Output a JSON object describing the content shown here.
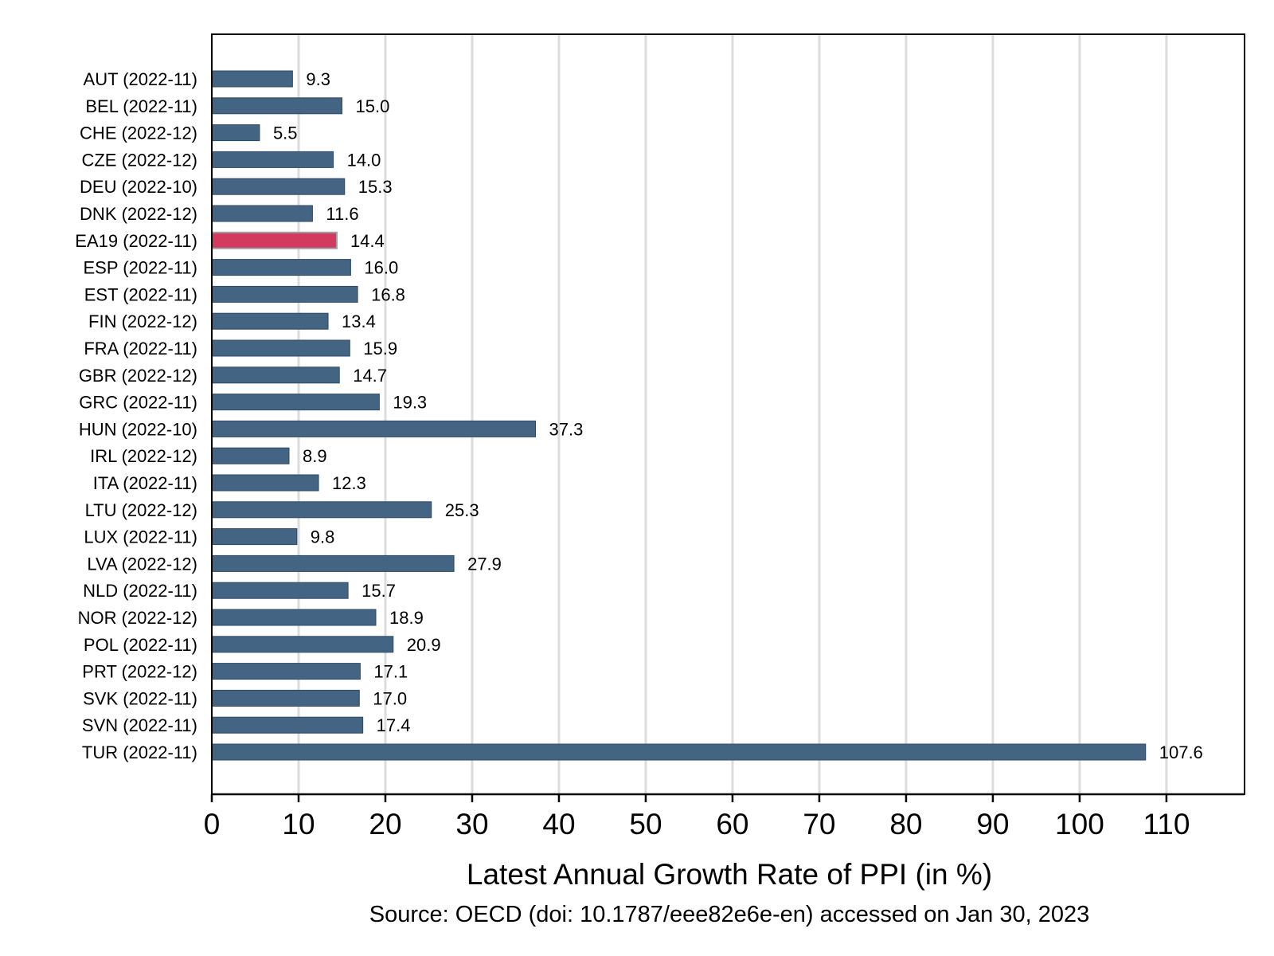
{
  "chart_data": {
    "type": "bar",
    "orientation": "horizontal",
    "categories": [
      "AUT (2022-11)",
      "BEL (2022-11)",
      "CHE (2022-12)",
      "CZE (2022-12)",
      "DEU (2022-10)",
      "DNK (2022-12)",
      "EA19 (2022-11)",
      "ESP (2022-11)",
      "EST (2022-11)",
      "FIN (2022-12)",
      "FRA (2022-11)",
      "GBR (2022-12)",
      "GRC (2022-11)",
      "HUN (2022-10)",
      "IRL (2022-12)",
      "ITA (2022-11)",
      "LTU (2022-12)",
      "LUX (2022-11)",
      "LVA (2022-12)",
      "NLD (2022-11)",
      "NOR (2022-12)",
      "POL (2022-11)",
      "PRT (2022-12)",
      "SVK (2022-11)",
      "SVN (2022-11)",
      "TUR (2022-11)"
    ],
    "values": [
      9.3,
      15.0,
      5.5,
      14.0,
      15.3,
      11.6,
      14.4,
      16.0,
      16.8,
      13.4,
      15.9,
      14.7,
      19.3,
      37.3,
      8.9,
      12.3,
      25.3,
      9.8,
      27.9,
      15.7,
      18.9,
      20.9,
      17.1,
      17.0,
      17.4,
      107.6
    ],
    "value_labels": [
      "9.3",
      "15.0",
      "5.5",
      "14.0",
      "15.3",
      "11.6",
      "14.4",
      "16.0",
      "16.8",
      "13.4",
      "15.9",
      "14.7",
      "19.3",
      "37.3",
      "8.9",
      "12.3",
      "25.3",
      "9.8",
      "27.9",
      "15.7",
      "18.9",
      "20.9",
      "17.1",
      "17.0",
      "17.4",
      "107.6"
    ],
    "highlight": "EA19 (2022-11)",
    "xlabel": "Latest Annual Growth Rate of PPI (in %)",
    "xlim": [
      0,
      119
    ],
    "xticks": [
      0,
      10,
      20,
      30,
      40,
      50,
      60,
      70,
      80,
      90,
      100,
      110
    ],
    "grid": "vertical",
    "legend": "none",
    "source": "Source: OECD (doi: 10.1787/eee82e6e-en) accessed on Jan 30, 2023",
    "colors": {
      "bar": "#446483",
      "bar_stroke": "#2f4a63",
      "highlight": "#d23a5f",
      "highlight_stroke": "#a0a0a0",
      "grid": "#dcdcdc"
    }
  }
}
